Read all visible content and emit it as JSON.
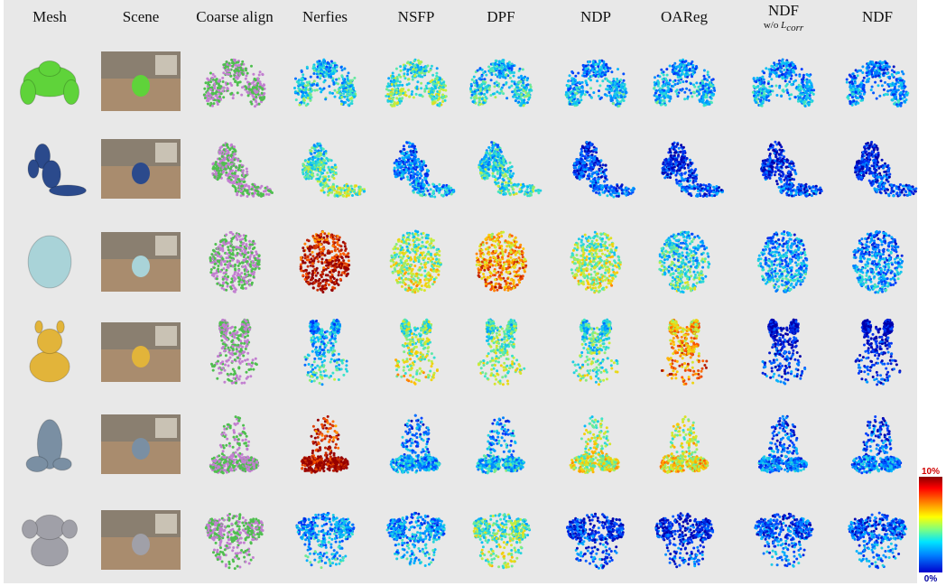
{
  "headers": [
    {
      "label": "Mesh"
    },
    {
      "label": "Scene"
    },
    {
      "label": "Coarse align"
    },
    {
      "label": "Nerfies"
    },
    {
      "label": "NSFP"
    },
    {
      "label": "DPF"
    },
    {
      "label": "NDP"
    },
    {
      "label": "OAReg"
    },
    {
      "label": "NDF",
      "sub_prefix": "w/o ",
      "sub_symbol": "L",
      "sub_subscript": "corr"
    },
    {
      "label": "NDF"
    }
  ],
  "rows": [
    {
      "object": "green-robot",
      "mesh_color": "#5fd33a",
      "errors": [
        0.35,
        0.45,
        0.35,
        0.3,
        0.3,
        0.28,
        0.25
      ]
    },
    {
      "object": "blue-dragon",
      "mesh_color": "#2b4a8c",
      "errors": [
        0.45,
        0.25,
        0.4,
        0.15,
        0.12,
        0.12,
        0.12
      ]
    },
    {
      "object": "backpack",
      "mesh_color": "#a9d3d8",
      "errors": [
        0.95,
        0.55,
        0.75,
        0.55,
        0.4,
        0.3,
        0.25
      ]
    },
    {
      "object": "giraffe",
      "mesh_color": "#e2b43a",
      "errors": [
        0.35,
        0.55,
        0.5,
        0.45,
        0.75,
        0.1,
        0.08
      ]
    },
    {
      "object": "shark",
      "mesh_color": "#7a8fa3",
      "errors": [
        0.95,
        0.25,
        0.3,
        0.55,
        0.6,
        0.2,
        0.2
      ]
    },
    {
      "object": "elephant",
      "mesh_color": "#a0a0a8",
      "errors": [
        0.3,
        0.3,
        0.5,
        0.15,
        0.12,
        0.2,
        0.2
      ]
    }
  ],
  "colorbar": {
    "max_label": "10%",
    "min_label": "0%"
  }
}
